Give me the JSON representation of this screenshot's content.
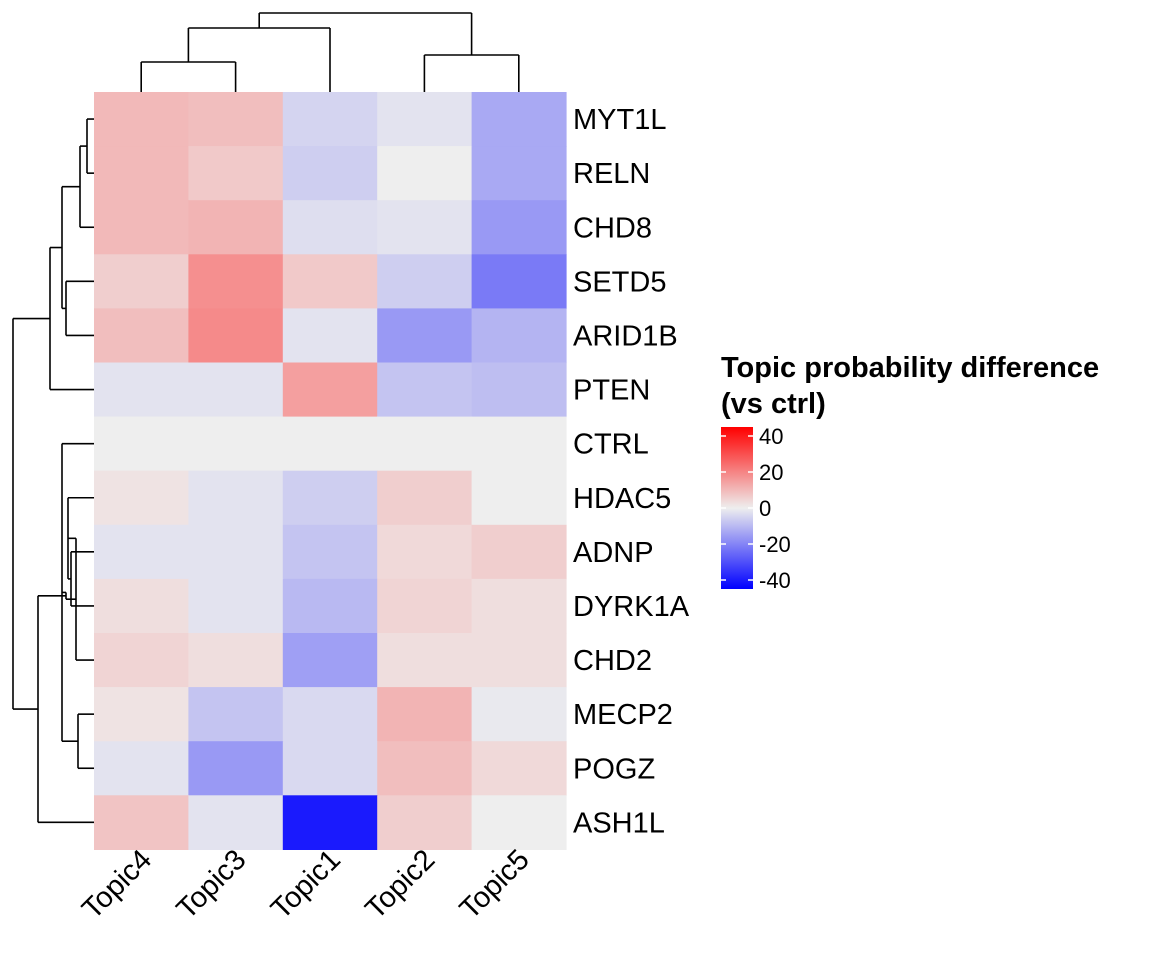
{
  "chart_data": {
    "type": "heatmap",
    "rows": [
      "MYT1L",
      "RELN",
      "CHD8",
      "SETD5",
      "ARID1B",
      "PTEN",
      "CTRL",
      "HDAC5",
      "ADNP",
      "DYRK1A",
      "CHD2",
      "MECP2",
      "POGZ",
      "ASH1L"
    ],
    "columns": [
      "Topic4",
      "Topic3",
      "Topic1",
      "Topic2",
      "Topic5"
    ],
    "values": [
      [
        10,
        9,
        -5,
        -2,
        -13
      ],
      [
        10,
        7,
        -6,
        0,
        -13
      ],
      [
        10,
        11,
        -3,
        -2,
        -16
      ],
      [
        6,
        18,
        7,
        -6,
        -22
      ],
      [
        9,
        19,
        -2,
        -16,
        -11
      ],
      [
        -2,
        -2,
        15,
        -8,
        -9
      ],
      [
        0,
        0,
        0,
        0,
        0
      ],
      [
        2,
        -2,
        -6,
        6,
        0
      ],
      [
        -2,
        -2,
        -8,
        4,
        6
      ],
      [
        3,
        -2,
        -10,
        5,
        3
      ],
      [
        5,
        3,
        -15,
        3,
        3
      ],
      [
        2,
        -8,
        -4,
        11,
        -1
      ],
      [
        -2,
        -16,
        -4,
        9,
        4
      ],
      [
        8,
        -2,
        -40,
        6,
        0
      ]
    ],
    "legend": {
      "title": "Topic probability difference\n(vs ctrl)",
      "ticks": [
        40,
        20,
        0,
        -20,
        -40
      ],
      "range": [
        -45,
        45
      ],
      "colors": {
        "high": "#ff0000",
        "mid": "#eeeeee",
        "low": "#0000ff"
      }
    },
    "row_dendrogram": true,
    "column_dendrogram": true
  }
}
